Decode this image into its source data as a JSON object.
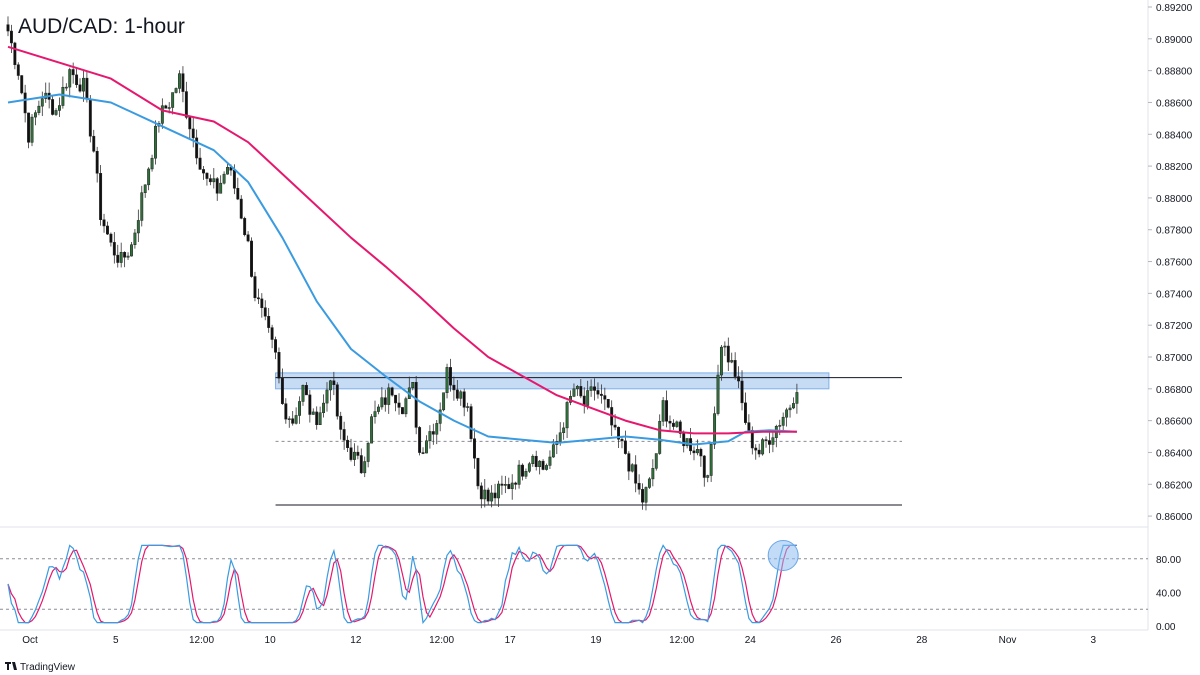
{
  "chart_data": {
    "type": "candlestick",
    "title": "AUD/CAD: 1-hour",
    "brand": "TradingView",
    "colors": {
      "up": "#2f6f3a",
      "down": "#111111",
      "ma_fast": "#3a9be0",
      "ma_slow": "#e6186e",
      "zone": "#a8c8ee",
      "stoch_k": "#3a9be0",
      "stoch_d": "#e6186e",
      "highlight": "#8fbdf0"
    },
    "price_axis": {
      "min": 0.859,
      "max": 0.892,
      "ticks": [
        "0.89200",
        "0.89000",
        "0.88800",
        "0.88600",
        "0.88400",
        "0.88200",
        "0.88000",
        "0.87800",
        "0.87600",
        "0.87400",
        "0.87200",
        "0.87000",
        "0.86800",
        "0.86600",
        "0.86400",
        "0.86200",
        "0.86000"
      ]
    },
    "time_axis": {
      "labels": [
        {
          "label": "Oct",
          "bar": 0
        },
        {
          "label": "5",
          "bar": 25
        },
        {
          "label": "12:00",
          "bar": 50
        },
        {
          "label": "10",
          "bar": 70
        },
        {
          "label": "12",
          "bar": 95
        },
        {
          "label": "12:00",
          "bar": 120
        },
        {
          "label": "17",
          "bar": 140
        },
        {
          "label": "19",
          "bar": 165
        },
        {
          "label": "12:00",
          "bar": 190
        },
        {
          "label": "24",
          "bar": 210
        },
        {
          "label": "26",
          "bar": 235
        },
        {
          "label": "28",
          "bar": 260
        },
        {
          "label": "Nov",
          "bar": 285
        },
        {
          "label": "3",
          "bar": 310
        }
      ]
    },
    "anchors": [
      [
        0,
        0.8905
      ],
      [
        3,
        0.888
      ],
      [
        6,
        0.884
      ],
      [
        10,
        0.8865
      ],
      [
        14,
        0.8855
      ],
      [
        18,
        0.888
      ],
      [
        22,
        0.887
      ],
      [
        25,
        0.883
      ],
      [
        27,
        0.879
      ],
      [
        30,
        0.877
      ],
      [
        33,
        0.876
      ],
      [
        36,
        0.877
      ],
      [
        40,
        0.881
      ],
      [
        44,
        0.885
      ],
      [
        47,
        0.886
      ],
      [
        50,
        0.8875
      ],
      [
        52,
        0.8855
      ],
      [
        55,
        0.883
      ],
      [
        58,
        0.881
      ],
      [
        61,
        0.8805
      ],
      [
        64,
        0.882
      ],
      [
        67,
        0.88
      ],
      [
        70,
        0.877
      ],
      [
        72,
        0.874
      ],
      [
        75,
        0.872
      ],
      [
        78,
        0.87
      ],
      [
        80,
        0.867
      ],
      [
        83,
        0.866
      ],
      [
        86,
        0.868
      ],
      [
        89,
        0.866
      ],
      [
        92,
        0.867
      ],
      [
        94,
        0.869
      ],
      [
        97,
        0.865
      ],
      [
        100,
        0.864
      ],
      [
        103,
        0.863
      ],
      [
        106,
        0.866
      ],
      [
        109,
        0.867
      ],
      [
        112,
        0.868
      ],
      [
        115,
        0.867
      ],
      [
        118,
        0.868
      ],
      [
        120,
        0.864
      ],
      [
        122,
        0.865
      ],
      [
        125,
        0.866
      ],
      [
        128,
        0.869
      ],
      [
        131,
        0.868
      ],
      [
        134,
        0.867
      ],
      [
        137,
        0.862
      ],
      [
        140,
        0.861
      ],
      [
        143,
        0.8615
      ],
      [
        146,
        0.862
      ],
      [
        150,
        0.863
      ],
      [
        153,
        0.864
      ],
      [
        156,
        0.863
      ],
      [
        159,
        0.864
      ],
      [
        162,
        0.866
      ],
      [
        165,
        0.868
      ],
      [
        168,
        0.867
      ],
      [
        171,
        0.868
      ],
      [
        174,
        0.867
      ],
      [
        177,
        0.865
      ],
      [
        180,
        0.864
      ],
      [
        183,
        0.862
      ],
      [
        185,
        0.861
      ],
      [
        187,
        0.862
      ],
      [
        189,
        0.864
      ],
      [
        191,
        0.867
      ],
      [
        193,
        0.866
      ],
      [
        196,
        0.865
      ],
      [
        199,
        0.8645
      ],
      [
        202,
        0.864
      ],
      [
        204,
        0.862
      ],
      [
        206,
        0.867
      ],
      [
        208,
        0.871
      ],
      [
        210,
        0.87
      ],
      [
        212,
        0.869
      ],
      [
        214,
        0.867
      ],
      [
        216,
        0.865
      ],
      [
        219,
        0.864
      ],
      [
        222,
        0.865
      ],
      [
        225,
        0.866
      ],
      [
        228,
        0.867
      ],
      [
        230,
        0.8683
      ]
    ],
    "ma_fast": {
      "name": "",
      "points": [
        [
          0,
          0.886
        ],
        [
          15,
          0.8865
        ],
        [
          30,
          0.886
        ],
        [
          45,
          0.8845
        ],
        [
          60,
          0.883
        ],
        [
          70,
          0.881
        ],
        [
          80,
          0.8775
        ],
        [
          90,
          0.8735
        ],
        [
          100,
          0.8705
        ],
        [
          110,
          0.8688
        ],
        [
          120,
          0.8672
        ],
        [
          130,
          0.866
        ],
        [
          140,
          0.865
        ],
        [
          150,
          0.8648
        ],
        [
          160,
          0.8646
        ],
        [
          170,
          0.8648
        ],
        [
          180,
          0.865
        ],
        [
          190,
          0.8648
        ],
        [
          200,
          0.8645
        ],
        [
          210,
          0.8647
        ],
        [
          215,
          0.8653
        ],
        [
          222,
          0.8654
        ],
        [
          230,
          0.8653
        ]
      ]
    },
    "ma_slow": {
      "name": "",
      "points": [
        [
          0,
          0.8895
        ],
        [
          15,
          0.8885
        ],
        [
          30,
          0.8875
        ],
        [
          45,
          0.8855
        ],
        [
          60,
          0.8848
        ],
        [
          70,
          0.8835
        ],
        [
          80,
          0.8815
        ],
        [
          90,
          0.8795
        ],
        [
          100,
          0.8775
        ],
        [
          110,
          0.8757
        ],
        [
          120,
          0.8738
        ],
        [
          130,
          0.8718
        ],
        [
          140,
          0.87
        ],
        [
          150,
          0.8688
        ],
        [
          160,
          0.8676
        ],
        [
          170,
          0.8668
        ],
        [
          180,
          0.866
        ],
        [
          190,
          0.8654
        ],
        [
          200,
          0.8652
        ],
        [
          210,
          0.8652
        ],
        [
          220,
          0.8653
        ],
        [
          230,
          0.8653
        ]
      ]
    },
    "levels": {
      "resistance_zone": {
        "from": 0.868,
        "to": 0.869,
        "bar_start": 78,
        "bar_end": 230
      },
      "resistance_line": {
        "price": 0.8687,
        "bar_start": 78,
        "bar_end": 257
      },
      "mid_dashed": {
        "price": 0.8647,
        "bar_start": 78,
        "bar_end": 257
      },
      "support_line": {
        "price": 0.8607,
        "bar_start": 78,
        "bar_end": 257
      }
    },
    "stochastic": {
      "ticks": [
        "80.00",
        "40.00",
        "0.00"
      ],
      "overbought": 80,
      "oversold": 20,
      "highlight_bar": 226
    }
  }
}
